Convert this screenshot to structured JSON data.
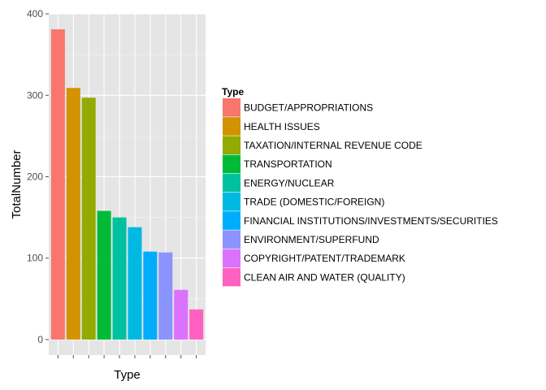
{
  "chart_data": {
    "type": "bar",
    "xlabel": "Type",
    "ylabel": "TotalNumber",
    "ylim": [
      0,
      400
    ],
    "yticks": [
      0,
      100,
      200,
      300,
      400
    ],
    "grid": true,
    "legend": {
      "title": "Type",
      "placement": "right"
    },
    "categories": [
      "BUDGET/APPROPRIATIONS",
      "HEALTH ISSUES",
      "TAXATION/INTERNAL REVENUE CODE",
      "TRANSPORTATION",
      "ENERGY/NUCLEAR",
      "TRADE (DOMESTIC/FOREIGN)",
      "FINANCIAL INSTITUTIONS/INVESTMENTS/SECURITIES",
      "ENVIRONMENT/SUPERFUND",
      "COPYRIGHT/PATENT/TRADEMARK",
      "CLEAN AIR AND WATER (QUALITY)"
    ],
    "values": [
      381,
      309,
      297,
      158,
      150,
      138,
      108,
      107,
      61,
      37
    ],
    "colors": [
      "#F8766D",
      "#D39200",
      "#93AA00",
      "#00BA38",
      "#00C19F",
      "#00B9E3",
      "#00ADFA",
      "#8B93FF",
      "#DB72FB",
      "#FF61C3"
    ],
    "panel_background": "#E5E5E5",
    "gridline_color": "#FFFFFF"
  }
}
